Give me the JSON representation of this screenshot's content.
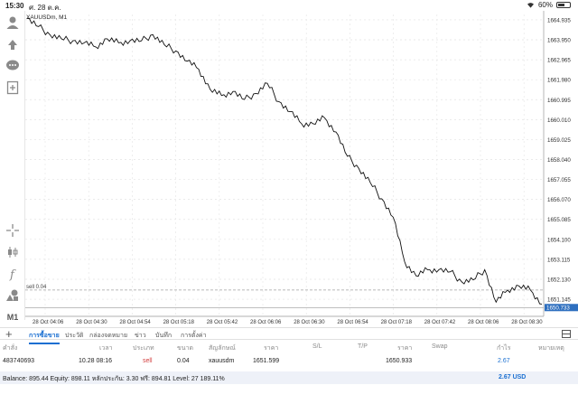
{
  "status_bar": {
    "time": "15:30",
    "date": "ศ. 28 ต.ค.",
    "battery": "60%",
    "battery_level": 0.6
  },
  "chart": {
    "symbol_label": "XAUUSDm, M1",
    "order_line_label": "sell 0.04",
    "current_price_label": "1650.733",
    "price_labels": [
      "1664.935",
      "1663.950",
      "1662.965",
      "1661.980",
      "1660.995",
      "1660.010",
      "1659.025",
      "1658.040",
      "1657.055",
      "1656.070",
      "1655.085",
      "1654.100",
      "1653.115",
      "1652.130",
      "1651.145",
      "1650.733"
    ],
    "time_labels": [
      "28 Oct 04:06",
      "28 Oct 04:30",
      "28 Oct 04:54",
      "28 Oct 05:18",
      "28 Oct 05:42",
      "28 Oct 06:06",
      "28 Oct 06:30",
      "28 Oct 06:54",
      "28 Oct 07:18",
      "28 Oct 07:42",
      "28 Oct 08:06",
      "28 Oct 08:30"
    ]
  },
  "chart_data": {
    "type": "line",
    "title": "XAUUSDm, M1",
    "xlabel": "",
    "ylabel": "",
    "ylim": [
      1650.3,
      1665.2
    ],
    "x": [
      "04:00",
      "04:06",
      "04:12",
      "04:18",
      "04:24",
      "04:30",
      "04:36",
      "04:42",
      "04:48",
      "04:54",
      "05:00",
      "05:06",
      "05:12",
      "05:18",
      "05:24",
      "05:30",
      "05:36",
      "05:42",
      "05:48",
      "05:54",
      "06:00",
      "06:06",
      "06:12",
      "06:18",
      "06:24",
      "06:30",
      "06:36",
      "06:42",
      "06:48",
      "06:54",
      "07:00",
      "07:06",
      "07:12",
      "07:18",
      "07:24",
      "07:30",
      "07:36",
      "07:42",
      "07:48",
      "07:54",
      "08:00",
      "08:06",
      "08:12",
      "08:18",
      "08:24",
      "08:30"
    ],
    "series": [
      {
        "values": [
          1665.0,
          1664.6,
          1664.2,
          1664.0,
          1663.9,
          1663.8,
          1663.6,
          1664.0,
          1663.8,
          1663.9,
          1663.9,
          1664.2,
          1663.7,
          1663.4,
          1662.9,
          1662.5,
          1661.5,
          1661.2,
          1661.4,
          1661.0,
          1661.3,
          1661.8,
          1660.9,
          1660.4,
          1659.8,
          1659.8,
          1660.1,
          1659.4,
          1658.2,
          1657.6,
          1656.9,
          1656.1,
          1655.2,
          1653.0,
          1652.3,
          1652.6,
          1652.6,
          1652.5,
          1652.0,
          1652.1,
          1652.6,
          1651.0,
          1651.6,
          1651.8,
          1651.6,
          1650.9
        ]
      }
    ]
  },
  "tabs": [
    {
      "label": "การซื้อขาย",
      "active": true
    },
    {
      "label": "ประวัติ",
      "active": false
    },
    {
      "label": "กล่องจดหมาย",
      "active": false
    },
    {
      "label": "ข่าว",
      "active": false
    },
    {
      "label": "บันทึก",
      "active": false
    },
    {
      "label": "การตั้งค่า",
      "active": false
    }
  ],
  "table": {
    "headers": [
      "คำสั่ง",
      "เวลา",
      "ประเภท",
      "ขนาด",
      "สัญลักษณ์",
      "ราคา",
      "S/L",
      "T/P",
      "ราคา",
      "Swap",
      "กำไร",
      "หมายเหตุ"
    ],
    "row": {
      "order": "483740693",
      "time": "10.28 08:16",
      "type": "sell",
      "size": "0.04",
      "symbol": "xauusdm",
      "open_price": "1651.599",
      "sl": "",
      "tp": "",
      "price": "1650.933",
      "swap": "",
      "profit": "2.67",
      "comment": ""
    }
  },
  "summary": {
    "text": "Balance: 895.44 Equity: 898.11 หลักประกัน: 3.30 ฟรี: 894.81 Level: 27 189.11%",
    "total": "2.67  USD"
  }
}
